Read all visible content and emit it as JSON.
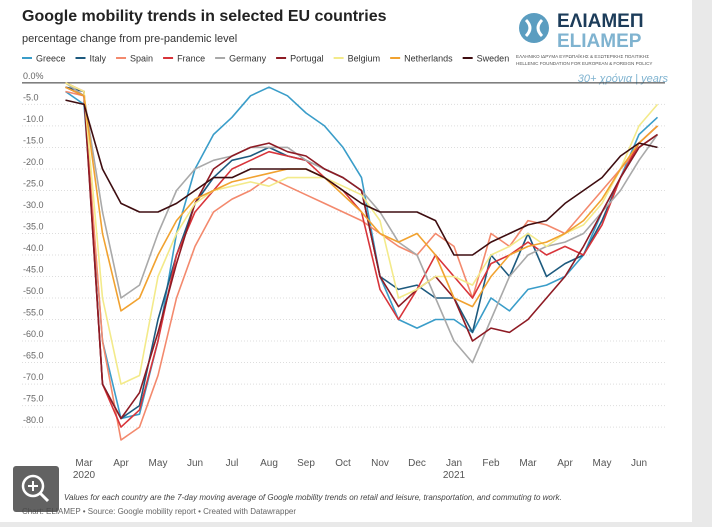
{
  "logo": {
    "greek": "ΕΛΙΑΜΕΠ",
    "latin": "ELIAMEP",
    "line1": "ΕΛΛΗΝΙΚΟ ΙΔΡΥΜΑ ΕΥΡΩΠΑΪΚΗΣ & ΕΞΩΤΕΡΙΚΗΣ ΠΟΛΙΤΙΚΗΣ",
    "line2": "HELLENIC FOUNDATION FOR EUROPEAN & FOREIGN POLICY",
    "tagline": "30+ χρόνια | years"
  },
  "chart_data": {
    "type": "line",
    "title": "Google mobility trends in selected EU countries",
    "subtitle": "percentage change from pre-pandemic level",
    "note": "Values for each country are the 7-day moving average of Google mobility trends on retail and leisure, transportation, and commuting to work.",
    "source": "Chart: ELIAMEP • Source: Google mobility report • Created with Datawrapper",
    "categories": [
      null,
      "Mar\n2020",
      null,
      "Apr",
      null,
      "May",
      null,
      "Jun",
      null,
      "Jul",
      null,
      "Aug",
      null,
      "Sep",
      null,
      "Oct",
      null,
      "Nov",
      null,
      "Dec",
      null,
      "Jan\n2021",
      null,
      "Feb",
      null,
      "Mar",
      null,
      "Apr",
      null,
      "May",
      null,
      "Jun",
      null
    ],
    "ylim": [
      -83,
      3
    ],
    "yticks": [
      {
        "value": 0,
        "label": "0.0%"
      },
      {
        "value": -5,
        "label": "-5.0"
      },
      {
        "value": -10,
        "label": "-10.0"
      },
      {
        "value": -15,
        "label": "-15.0"
      },
      {
        "value": -20,
        "label": "-20.0"
      },
      {
        "value": -25,
        "label": "-25.0"
      },
      {
        "value": -30,
        "label": "-30.0"
      },
      {
        "value": -35,
        "label": "-35.0"
      },
      {
        "value": -40,
        "label": "-40.0"
      },
      {
        "value": -45,
        "label": "-45.0"
      },
      {
        "value": -50,
        "label": "-50.0"
      },
      {
        "value": -55,
        "label": "-55.0"
      },
      {
        "value": -60,
        "label": "-60.0"
      },
      {
        "value": -65,
        "label": "-65.0"
      },
      {
        "value": -70,
        "label": "-70.0"
      },
      {
        "value": -75,
        "label": "-75.0"
      },
      {
        "value": -80,
        "label": "-80.0"
      }
    ],
    "grid": true,
    "series": [
      {
        "name": "Greece",
        "color": "#3a9dc9",
        "values": [
          -2,
          -5,
          -60,
          -78,
          -77,
          -60,
          -35,
          -20,
          -12,
          -8,
          -3,
          -1,
          -3,
          -7,
          -10,
          -15,
          -22,
          -45,
          -55,
          -57,
          -55,
          -55,
          -58,
          -50,
          -53,
          -48,
          -47,
          -45,
          -40,
          -30,
          -22,
          -12,
          -8
        ]
      },
      {
        "name": "Italy",
        "color": "#1d5a7e",
        "values": [
          -1,
          -2,
          -70,
          -78,
          -75,
          -55,
          -40,
          -28,
          -22,
          -18,
          -17,
          -15,
          -17,
          -18,
          -20,
          -22,
          -25,
          -45,
          -48,
          -47,
          -50,
          -50,
          -58,
          -40,
          -45,
          -35,
          -45,
          -42,
          -40,
          -32,
          -22,
          -15,
          -12
        ]
      },
      {
        "name": "Spain",
        "color": "#f3896d",
        "values": [
          -2,
          -3,
          -60,
          -83,
          -80,
          -68,
          -50,
          -38,
          -30,
          -27,
          -25,
          -22,
          -24,
          -26,
          -28,
          -30,
          -32,
          -35,
          -38,
          -40,
          -35,
          -38,
          -50,
          -35,
          -38,
          -32,
          -33,
          -35,
          -30,
          -25,
          -20,
          -15,
          -12
        ]
      },
      {
        "name": "France",
        "color": "#d8343a",
        "values": [
          0,
          -2,
          -70,
          -80,
          -76,
          -60,
          -40,
          -30,
          -25,
          -20,
          -18,
          -16,
          -17,
          -18,
          -22,
          -25,
          -30,
          -48,
          -55,
          -48,
          -40,
          -45,
          -50,
          -42,
          -40,
          -37,
          -40,
          -38,
          -40,
          -33,
          -22,
          -14,
          -10
        ]
      },
      {
        "name": "Germany",
        "color": "#a9a9a9",
        "values": [
          0,
          -3,
          -30,
          -50,
          -47,
          -35,
          -25,
          -20,
          -18,
          -17,
          -15,
          -15,
          -15,
          -18,
          -20,
          -22,
          -25,
          -30,
          -37,
          -40,
          -50,
          -60,
          -65,
          -55,
          -45,
          -40,
          -38,
          -37,
          -35,
          -30,
          -25,
          -18,
          -12
        ]
      },
      {
        "name": "Portugal",
        "color": "#8e1b24",
        "values": [
          -1,
          -3,
          -70,
          -78,
          -72,
          -58,
          -42,
          -28,
          -20,
          -17,
          -15,
          -14,
          -16,
          -17,
          -20,
          -22,
          -25,
          -45,
          -52,
          -48,
          -45,
          -50,
          -60,
          -57,
          -58,
          -55,
          -50,
          -45,
          -38,
          -30,
          -22,
          -15,
          -12
        ]
      },
      {
        "name": "Belgium",
        "color": "#f3ea8a",
        "values": [
          0,
          -2,
          -50,
          -70,
          -68,
          -45,
          -35,
          -28,
          -25,
          -24,
          -23,
          -24,
          -22,
          -22,
          -22,
          -24,
          -26,
          -32,
          -50,
          -48,
          -45,
          -45,
          -47,
          -40,
          -38,
          -35,
          -38,
          -35,
          -33,
          -28,
          -20,
          -10,
          -5
        ]
      },
      {
        "name": "Netherlands",
        "color": "#f1a230",
        "values": [
          -1,
          -3,
          -35,
          -53,
          -50,
          -40,
          -32,
          -27,
          -25,
          -23,
          -22,
          -21,
          -20,
          -20,
          -22,
          -26,
          -30,
          -35,
          -37,
          -35,
          -40,
          -50,
          -52,
          -45,
          -40,
          -38,
          -37,
          -35,
          -32,
          -27,
          -20,
          -14,
          -10
        ]
      },
      {
        "name": "Sweden",
        "color": "#3e0d10",
        "values": [
          -4,
          -5,
          -20,
          -28,
          -30,
          -30,
          -28,
          -25,
          -22,
          -22,
          -20,
          -20,
          -20,
          -20,
          -22,
          -25,
          -28,
          -30,
          -30,
          -30,
          -32,
          -40,
          -40,
          -37,
          -35,
          -33,
          -32,
          -28,
          -25,
          -22,
          -17,
          -14,
          -15
        ]
      }
    ]
  }
}
